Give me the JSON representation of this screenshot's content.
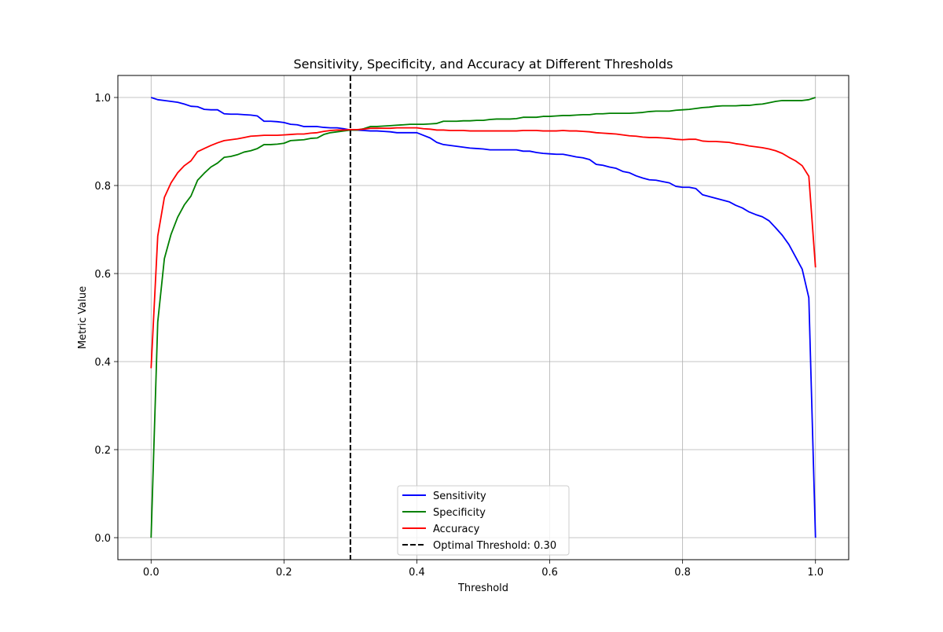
{
  "chart_data": {
    "type": "line",
    "title": "Sensitivity, Specificity, and Accuracy at Different Thresholds",
    "xlabel": "Threshold",
    "ylabel": "Metric Value",
    "xlim": [
      -0.05,
      1.05
    ],
    "ylim": [
      -0.05,
      1.05
    ],
    "x_ticks": [
      0.0,
      0.2,
      0.4,
      0.6,
      0.8,
      1.0
    ],
    "x_tick_labels": [
      "0.0",
      "0.2",
      "0.4",
      "0.6",
      "0.8",
      "1.0"
    ],
    "y_ticks": [
      0.0,
      0.2,
      0.4,
      0.6,
      0.8,
      1.0
    ],
    "y_tick_labels": [
      "0.0",
      "0.2",
      "0.4",
      "0.6",
      "0.8",
      "1.0"
    ],
    "grid": true,
    "legend_position": "lower-center",
    "series": [
      {
        "name": "Sensitivity",
        "color": "#0000ff",
        "points": [
          [
            0.0,
            1.0
          ],
          [
            0.01,
            0.995
          ],
          [
            0.02,
            0.993
          ],
          [
            0.03,
            0.991
          ],
          [
            0.04,
            0.989
          ],
          [
            0.05,
            0.985
          ],
          [
            0.06,
            0.98
          ],
          [
            0.07,
            0.979
          ],
          [
            0.08,
            0.973
          ],
          [
            0.09,
            0.972
          ],
          [
            0.1,
            0.972
          ],
          [
            0.11,
            0.963
          ],
          [
            0.12,
            0.962
          ],
          [
            0.13,
            0.962
          ],
          [
            0.14,
            0.961
          ],
          [
            0.15,
            0.96
          ],
          [
            0.16,
            0.958
          ],
          [
            0.17,
            0.946
          ],
          [
            0.18,
            0.946
          ],
          [
            0.19,
            0.945
          ],
          [
            0.2,
            0.943
          ],
          [
            0.21,
            0.939
          ],
          [
            0.22,
            0.938
          ],
          [
            0.23,
            0.934
          ],
          [
            0.24,
            0.934
          ],
          [
            0.25,
            0.934
          ],
          [
            0.26,
            0.932
          ],
          [
            0.27,
            0.931
          ],
          [
            0.28,
            0.931
          ],
          [
            0.29,
            0.929
          ],
          [
            0.3,
            0.926
          ],
          [
            0.31,
            0.926
          ],
          [
            0.32,
            0.925
          ],
          [
            0.33,
            0.924
          ],
          [
            0.34,
            0.924
          ],
          [
            0.35,
            0.923
          ],
          [
            0.36,
            0.922
          ],
          [
            0.37,
            0.92
          ],
          [
            0.38,
            0.92
          ],
          [
            0.39,
            0.92
          ],
          [
            0.4,
            0.92
          ],
          [
            0.41,
            0.914
          ],
          [
            0.42,
            0.908
          ],
          [
            0.43,
            0.898
          ],
          [
            0.44,
            0.893
          ],
          [
            0.45,
            0.891
          ],
          [
            0.46,
            0.889
          ],
          [
            0.47,
            0.887
          ],
          [
            0.48,
            0.885
          ],
          [
            0.49,
            0.884
          ],
          [
            0.5,
            0.883
          ],
          [
            0.51,
            0.881
          ],
          [
            0.52,
            0.881
          ],
          [
            0.53,
            0.881
          ],
          [
            0.54,
            0.881
          ],
          [
            0.55,
            0.881
          ],
          [
            0.56,
            0.878
          ],
          [
            0.57,
            0.878
          ],
          [
            0.58,
            0.875
          ],
          [
            0.59,
            0.873
          ],
          [
            0.6,
            0.872
          ],
          [
            0.61,
            0.871
          ],
          [
            0.62,
            0.871
          ],
          [
            0.63,
            0.868
          ],
          [
            0.64,
            0.865
          ],
          [
            0.65,
            0.863
          ],
          [
            0.66,
            0.859
          ],
          [
            0.67,
            0.848
          ],
          [
            0.68,
            0.846
          ],
          [
            0.69,
            0.842
          ],
          [
            0.7,
            0.839
          ],
          [
            0.71,
            0.832
          ],
          [
            0.72,
            0.829
          ],
          [
            0.73,
            0.822
          ],
          [
            0.74,
            0.817
          ],
          [
            0.75,
            0.813
          ],
          [
            0.76,
            0.812
          ],
          [
            0.77,
            0.809
          ],
          [
            0.78,
            0.806
          ],
          [
            0.79,
            0.798
          ],
          [
            0.8,
            0.796
          ],
          [
            0.81,
            0.796
          ],
          [
            0.82,
            0.793
          ],
          [
            0.83,
            0.779
          ],
          [
            0.84,
            0.775
          ],
          [
            0.85,
            0.771
          ],
          [
            0.86,
            0.767
          ],
          [
            0.87,
            0.763
          ],
          [
            0.88,
            0.755
          ],
          [
            0.89,
            0.749
          ],
          [
            0.9,
            0.74
          ],
          [
            0.91,
            0.734
          ],
          [
            0.92,
            0.729
          ],
          [
            0.93,
            0.72
          ],
          [
            0.94,
            0.704
          ],
          [
            0.95,
            0.687
          ],
          [
            0.96,
            0.666
          ],
          [
            0.97,
            0.638
          ],
          [
            0.98,
            0.61
          ],
          [
            0.99,
            0.545
          ],
          [
            1.0,
            0.0
          ]
        ]
      },
      {
        "name": "Specificity",
        "color": "#008000",
        "points": [
          [
            0.0,
            0.0
          ],
          [
            0.01,
            0.49
          ],
          [
            0.02,
            0.634
          ],
          [
            0.03,
            0.689
          ],
          [
            0.04,
            0.728
          ],
          [
            0.05,
            0.756
          ],
          [
            0.06,
            0.776
          ],
          [
            0.07,
            0.812
          ],
          [
            0.08,
            0.828
          ],
          [
            0.09,
            0.842
          ],
          [
            0.1,
            0.851
          ],
          [
            0.11,
            0.864
          ],
          [
            0.12,
            0.866
          ],
          [
            0.13,
            0.87
          ],
          [
            0.14,
            0.876
          ],
          [
            0.15,
            0.879
          ],
          [
            0.16,
            0.884
          ],
          [
            0.17,
            0.893
          ],
          [
            0.18,
            0.893
          ],
          [
            0.19,
            0.894
          ],
          [
            0.2,
            0.896
          ],
          [
            0.21,
            0.902
          ],
          [
            0.22,
            0.903
          ],
          [
            0.23,
            0.904
          ],
          [
            0.24,
            0.907
          ],
          [
            0.25,
            0.908
          ],
          [
            0.26,
            0.916
          ],
          [
            0.27,
            0.92
          ],
          [
            0.28,
            0.922
          ],
          [
            0.29,
            0.924
          ],
          [
            0.3,
            0.926
          ],
          [
            0.31,
            0.926
          ],
          [
            0.32,
            0.929
          ],
          [
            0.33,
            0.934
          ],
          [
            0.34,
            0.934
          ],
          [
            0.35,
            0.935
          ],
          [
            0.36,
            0.936
          ],
          [
            0.37,
            0.937
          ],
          [
            0.38,
            0.938
          ],
          [
            0.39,
            0.939
          ],
          [
            0.4,
            0.939
          ],
          [
            0.41,
            0.939
          ],
          [
            0.42,
            0.94
          ],
          [
            0.43,
            0.941
          ],
          [
            0.44,
            0.946
          ],
          [
            0.45,
            0.946
          ],
          [
            0.46,
            0.946
          ],
          [
            0.47,
            0.947
          ],
          [
            0.48,
            0.947
          ],
          [
            0.49,
            0.948
          ],
          [
            0.5,
            0.948
          ],
          [
            0.51,
            0.95
          ],
          [
            0.52,
            0.951
          ],
          [
            0.53,
            0.951
          ],
          [
            0.54,
            0.951
          ],
          [
            0.55,
            0.952
          ],
          [
            0.56,
            0.955
          ],
          [
            0.57,
            0.955
          ],
          [
            0.58,
            0.955
          ],
          [
            0.59,
            0.957
          ],
          [
            0.6,
            0.957
          ],
          [
            0.61,
            0.958
          ],
          [
            0.62,
            0.959
          ],
          [
            0.63,
            0.959
          ],
          [
            0.64,
            0.96
          ],
          [
            0.65,
            0.961
          ],
          [
            0.66,
            0.961
          ],
          [
            0.67,
            0.963
          ],
          [
            0.68,
            0.963
          ],
          [
            0.69,
            0.964
          ],
          [
            0.7,
            0.964
          ],
          [
            0.71,
            0.964
          ],
          [
            0.72,
            0.964
          ],
          [
            0.73,
            0.965
          ],
          [
            0.74,
            0.966
          ],
          [
            0.75,
            0.968
          ],
          [
            0.76,
            0.969
          ],
          [
            0.77,
            0.969
          ],
          [
            0.78,
            0.969
          ],
          [
            0.79,
            0.971
          ],
          [
            0.8,
            0.972
          ],
          [
            0.81,
            0.973
          ],
          [
            0.82,
            0.975
          ],
          [
            0.83,
            0.977
          ],
          [
            0.84,
            0.978
          ],
          [
            0.85,
            0.98
          ],
          [
            0.86,
            0.981
          ],
          [
            0.87,
            0.981
          ],
          [
            0.88,
            0.981
          ],
          [
            0.89,
            0.982
          ],
          [
            0.9,
            0.982
          ],
          [
            0.91,
            0.984
          ],
          [
            0.92,
            0.985
          ],
          [
            0.93,
            0.988
          ],
          [
            0.94,
            0.991
          ],
          [
            0.95,
            0.993
          ],
          [
            0.96,
            0.993
          ],
          [
            0.97,
            0.993
          ],
          [
            0.98,
            0.993
          ],
          [
            0.99,
            0.995
          ],
          [
            1.0,
            1.0
          ]
        ]
      },
      {
        "name": "Accuracy",
        "color": "#ff0000",
        "points": [
          [
            0.0,
            0.385
          ],
          [
            0.01,
            0.685
          ],
          [
            0.02,
            0.773
          ],
          [
            0.03,
            0.806
          ],
          [
            0.04,
            0.829
          ],
          [
            0.05,
            0.845
          ],
          [
            0.06,
            0.856
          ],
          [
            0.07,
            0.877
          ],
          [
            0.08,
            0.884
          ],
          [
            0.09,
            0.891
          ],
          [
            0.1,
            0.897
          ],
          [
            0.11,
            0.902
          ],
          [
            0.12,
            0.904
          ],
          [
            0.13,
            0.906
          ],
          [
            0.14,
            0.909
          ],
          [
            0.15,
            0.912
          ],
          [
            0.16,
            0.913
          ],
          [
            0.17,
            0.914
          ],
          [
            0.18,
            0.914
          ],
          [
            0.19,
            0.914
          ],
          [
            0.2,
            0.915
          ],
          [
            0.21,
            0.916
          ],
          [
            0.22,
            0.917
          ],
          [
            0.23,
            0.917
          ],
          [
            0.24,
            0.919
          ],
          [
            0.25,
            0.92
          ],
          [
            0.26,
            0.923
          ],
          [
            0.27,
            0.925
          ],
          [
            0.28,
            0.926
          ],
          [
            0.29,
            0.926
          ],
          [
            0.3,
            0.927
          ],
          [
            0.31,
            0.927
          ],
          [
            0.32,
            0.928
          ],
          [
            0.33,
            0.93
          ],
          [
            0.34,
            0.93
          ],
          [
            0.35,
            0.93
          ],
          [
            0.36,
            0.93
          ],
          [
            0.37,
            0.931
          ],
          [
            0.38,
            0.931
          ],
          [
            0.39,
            0.931
          ],
          [
            0.4,
            0.931
          ],
          [
            0.41,
            0.929
          ],
          [
            0.42,
            0.928
          ],
          [
            0.43,
            0.926
          ],
          [
            0.44,
            0.926
          ],
          [
            0.45,
            0.925
          ],
          [
            0.46,
            0.925
          ],
          [
            0.47,
            0.925
          ],
          [
            0.48,
            0.924
          ],
          [
            0.49,
            0.924
          ],
          [
            0.5,
            0.924
          ],
          [
            0.51,
            0.924
          ],
          [
            0.52,
            0.924
          ],
          [
            0.53,
            0.924
          ],
          [
            0.54,
            0.924
          ],
          [
            0.55,
            0.924
          ],
          [
            0.56,
            0.925
          ],
          [
            0.57,
            0.925
          ],
          [
            0.58,
            0.925
          ],
          [
            0.59,
            0.924
          ],
          [
            0.6,
            0.924
          ],
          [
            0.61,
            0.924
          ],
          [
            0.62,
            0.925
          ],
          [
            0.63,
            0.924
          ],
          [
            0.64,
            0.924
          ],
          [
            0.65,
            0.923
          ],
          [
            0.66,
            0.922
          ],
          [
            0.67,
            0.92
          ],
          [
            0.68,
            0.919
          ],
          [
            0.69,
            0.918
          ],
          [
            0.7,
            0.917
          ],
          [
            0.71,
            0.915
          ],
          [
            0.72,
            0.913
          ],
          [
            0.73,
            0.912
          ],
          [
            0.74,
            0.91
          ],
          [
            0.75,
            0.909
          ],
          [
            0.76,
            0.909
          ],
          [
            0.77,
            0.908
          ],
          [
            0.78,
            0.907
          ],
          [
            0.79,
            0.905
          ],
          [
            0.8,
            0.904
          ],
          [
            0.81,
            0.905
          ],
          [
            0.82,
            0.905
          ],
          [
            0.83,
            0.901
          ],
          [
            0.84,
            0.9
          ],
          [
            0.85,
            0.9
          ],
          [
            0.86,
            0.899
          ],
          [
            0.87,
            0.898
          ],
          [
            0.88,
            0.895
          ],
          [
            0.89,
            0.893
          ],
          [
            0.9,
            0.89
          ],
          [
            0.91,
            0.888
          ],
          [
            0.92,
            0.886
          ],
          [
            0.93,
            0.883
          ],
          [
            0.94,
            0.879
          ],
          [
            0.95,
            0.873
          ],
          [
            0.96,
            0.864
          ],
          [
            0.97,
            0.856
          ],
          [
            0.98,
            0.845
          ],
          [
            0.99,
            0.821
          ],
          [
            1.0,
            0.614
          ]
        ]
      }
    ],
    "reference_line": {
      "name": "Optimal Threshold: 0.30",
      "x": 0.3,
      "color": "#000000",
      "style": "dashed"
    }
  }
}
